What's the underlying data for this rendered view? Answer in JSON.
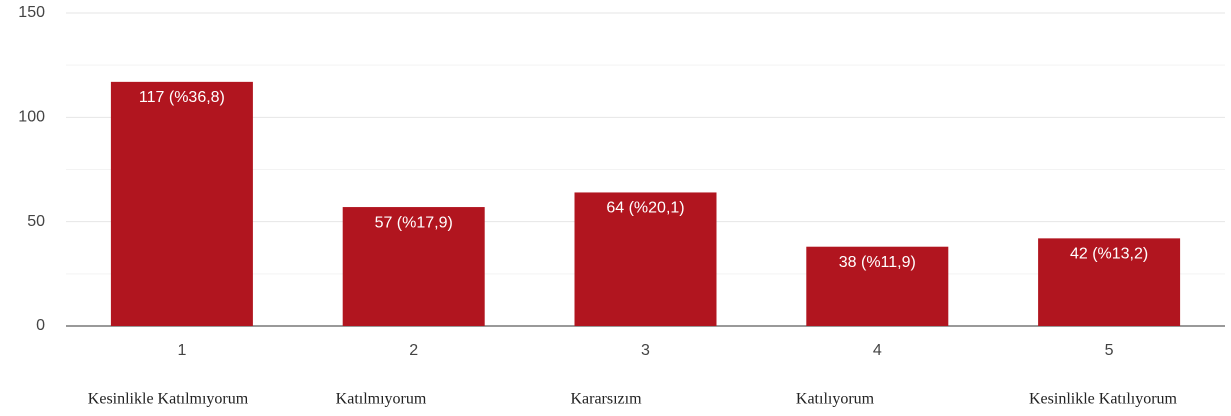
{
  "chart_data": {
    "type": "bar",
    "categories": [
      "1",
      "2",
      "3",
      "4",
      "5"
    ],
    "values": [
      117,
      57,
      64,
      38,
      42
    ],
    "value_labels": [
      "117 (%36,8)",
      "57 (%17,9)",
      "64 (%20,1)",
      "38 (%11,9)",
      "42 (%13,2)"
    ],
    "x_labels": [
      "Kesinlikle Katılmıyorum",
      "Katılmıyorum",
      "Kararsızım",
      "Katılıyorum",
      "Kesinlikle Katılıyorum"
    ],
    "color": "#b1151f",
    "ylim": [
      0,
      150
    ],
    "yticks": [
      0,
      50,
      100,
      150
    ],
    "minor_yticks": [
      25,
      75,
      125
    ],
    "grid": true
  }
}
